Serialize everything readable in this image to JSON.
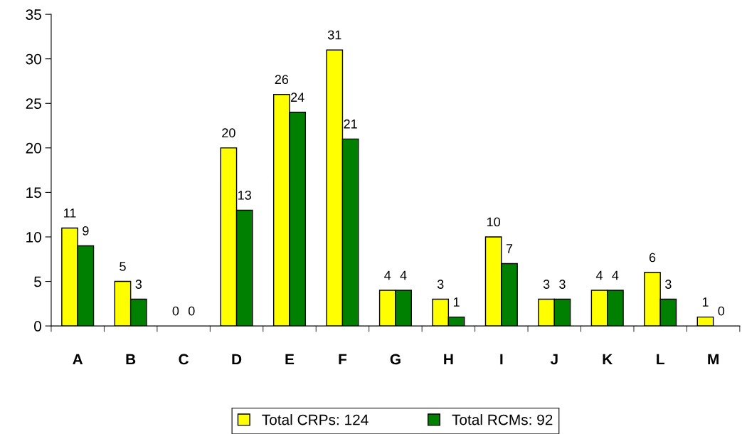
{
  "chart_data": {
    "type": "bar",
    "categories": [
      "A",
      "B",
      "C",
      "D",
      "E",
      "F",
      "G",
      "H",
      "I",
      "J",
      "K",
      "L",
      "M"
    ],
    "series": [
      {
        "name": "Total CRPs: 124",
        "color": "#ffff00",
        "values": [
          11,
          5,
          0,
          20,
          26,
          31,
          4,
          3,
          10,
          3,
          4,
          6,
          1
        ]
      },
      {
        "name": "Total RCMs: 92",
        "color": "#008000",
        "values": [
          9,
          3,
          0,
          13,
          24,
          21,
          4,
          1,
          7,
          3,
          4,
          3,
          0
        ]
      }
    ],
    "ylim": [
      0,
      35
    ],
    "yticks": [
      0,
      5,
      10,
      15,
      20,
      25,
      30,
      35
    ],
    "data_labels": true,
    "grid": false,
    "legend": "bottom"
  }
}
